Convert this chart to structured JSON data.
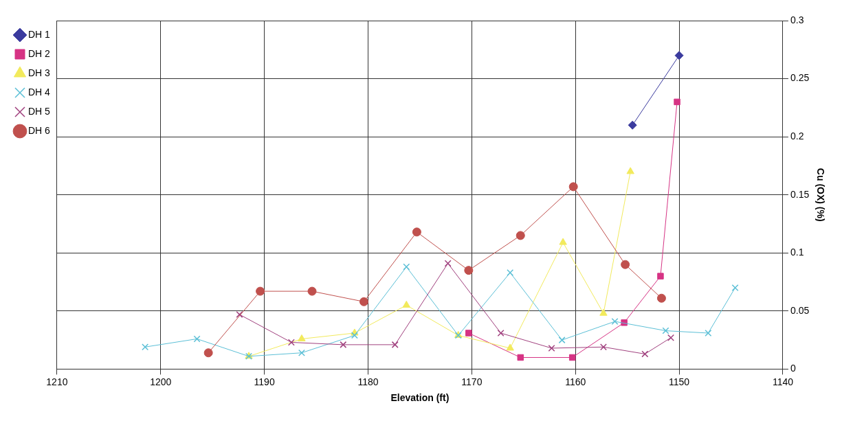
{
  "chart_data": {
    "type": "line",
    "xlabel": "Elevation (ft)",
    "ylabel": "Cu (OX) (%)",
    "xlim": [
      1210,
      1140
    ],
    "xticks": [
      1210,
      1200,
      1190,
      1180,
      1170,
      1160,
      1150,
      1140
    ],
    "ylim": [
      0,
      0.3
    ],
    "yticks": [
      0,
      0.05,
      0.1,
      0.15,
      0.2,
      0.25,
      0.3
    ],
    "grid": true,
    "legend": "top left",
    "line_style": "solid",
    "series": [
      {
        "name": "DH 1",
        "color": "#3b3b9e",
        "marker": "diamond",
        "x": [
          1154.5,
          1150
        ],
        "values": [
          0.21,
          0.27
        ]
      },
      {
        "name": "DH 2",
        "color": "#d63384",
        "marker": "square",
        "x": [
          1170.3,
          1165.3,
          1160.3,
          1155.3,
          1151.8,
          1150.2
        ],
        "values": [
          0.031,
          0.01,
          0.01,
          0.04,
          0.08,
          0.23
        ]
      },
      {
        "name": "DH 3",
        "color": "#f2ea5c",
        "marker": "triangle",
        "x": [
          1191.5,
          1186.4,
          1181.3,
          1176.3,
          1171.3,
          1166.3,
          1161.2,
          1157.3,
          1154.7
        ],
        "values": [
          0.011,
          0.026,
          0.031,
          0.055,
          0.029,
          0.018,
          0.109,
          0.048,
          0.17
        ]
      },
      {
        "name": "DH 4",
        "color": "#5bbfd6",
        "marker": "cross",
        "x": [
          1201.5,
          1196.5,
          1191.5,
          1186.4,
          1181.3,
          1176.3,
          1171.3,
          1166.3,
          1161.3,
          1156.2,
          1151.3,
          1147.2,
          1144.6
        ],
        "values": [
          0.019,
          0.026,
          0.011,
          0.014,
          0.029,
          0.088,
          0.029,
          0.083,
          0.025,
          0.041,
          0.033,
          0.031,
          0.07
        ]
      },
      {
        "name": "DH 5",
        "color": "#a0407e",
        "marker": "cross",
        "x": [
          1192.4,
          1187.4,
          1182.4,
          1177.4,
          1172.3,
          1167.2,
          1162.3,
          1157.3,
          1153.3,
          1150.8
        ],
        "values": [
          0.047,
          0.023,
          0.021,
          0.021,
          0.091,
          0.031,
          0.018,
          0.019,
          0.013,
          0.027
        ]
      },
      {
        "name": "DH 6",
        "color": "#c0504d",
        "marker": "circle",
        "x": [
          1195.4,
          1190.4,
          1185.4,
          1180.4,
          1175.3,
          1170.3,
          1165.3,
          1160.2,
          1155.2,
          1151.7
        ],
        "values": [
          0.014,
          0.067,
          0.067,
          0.058,
          0.118,
          0.085,
          0.115,
          0.157,
          0.09,
          0.061
        ]
      }
    ]
  }
}
